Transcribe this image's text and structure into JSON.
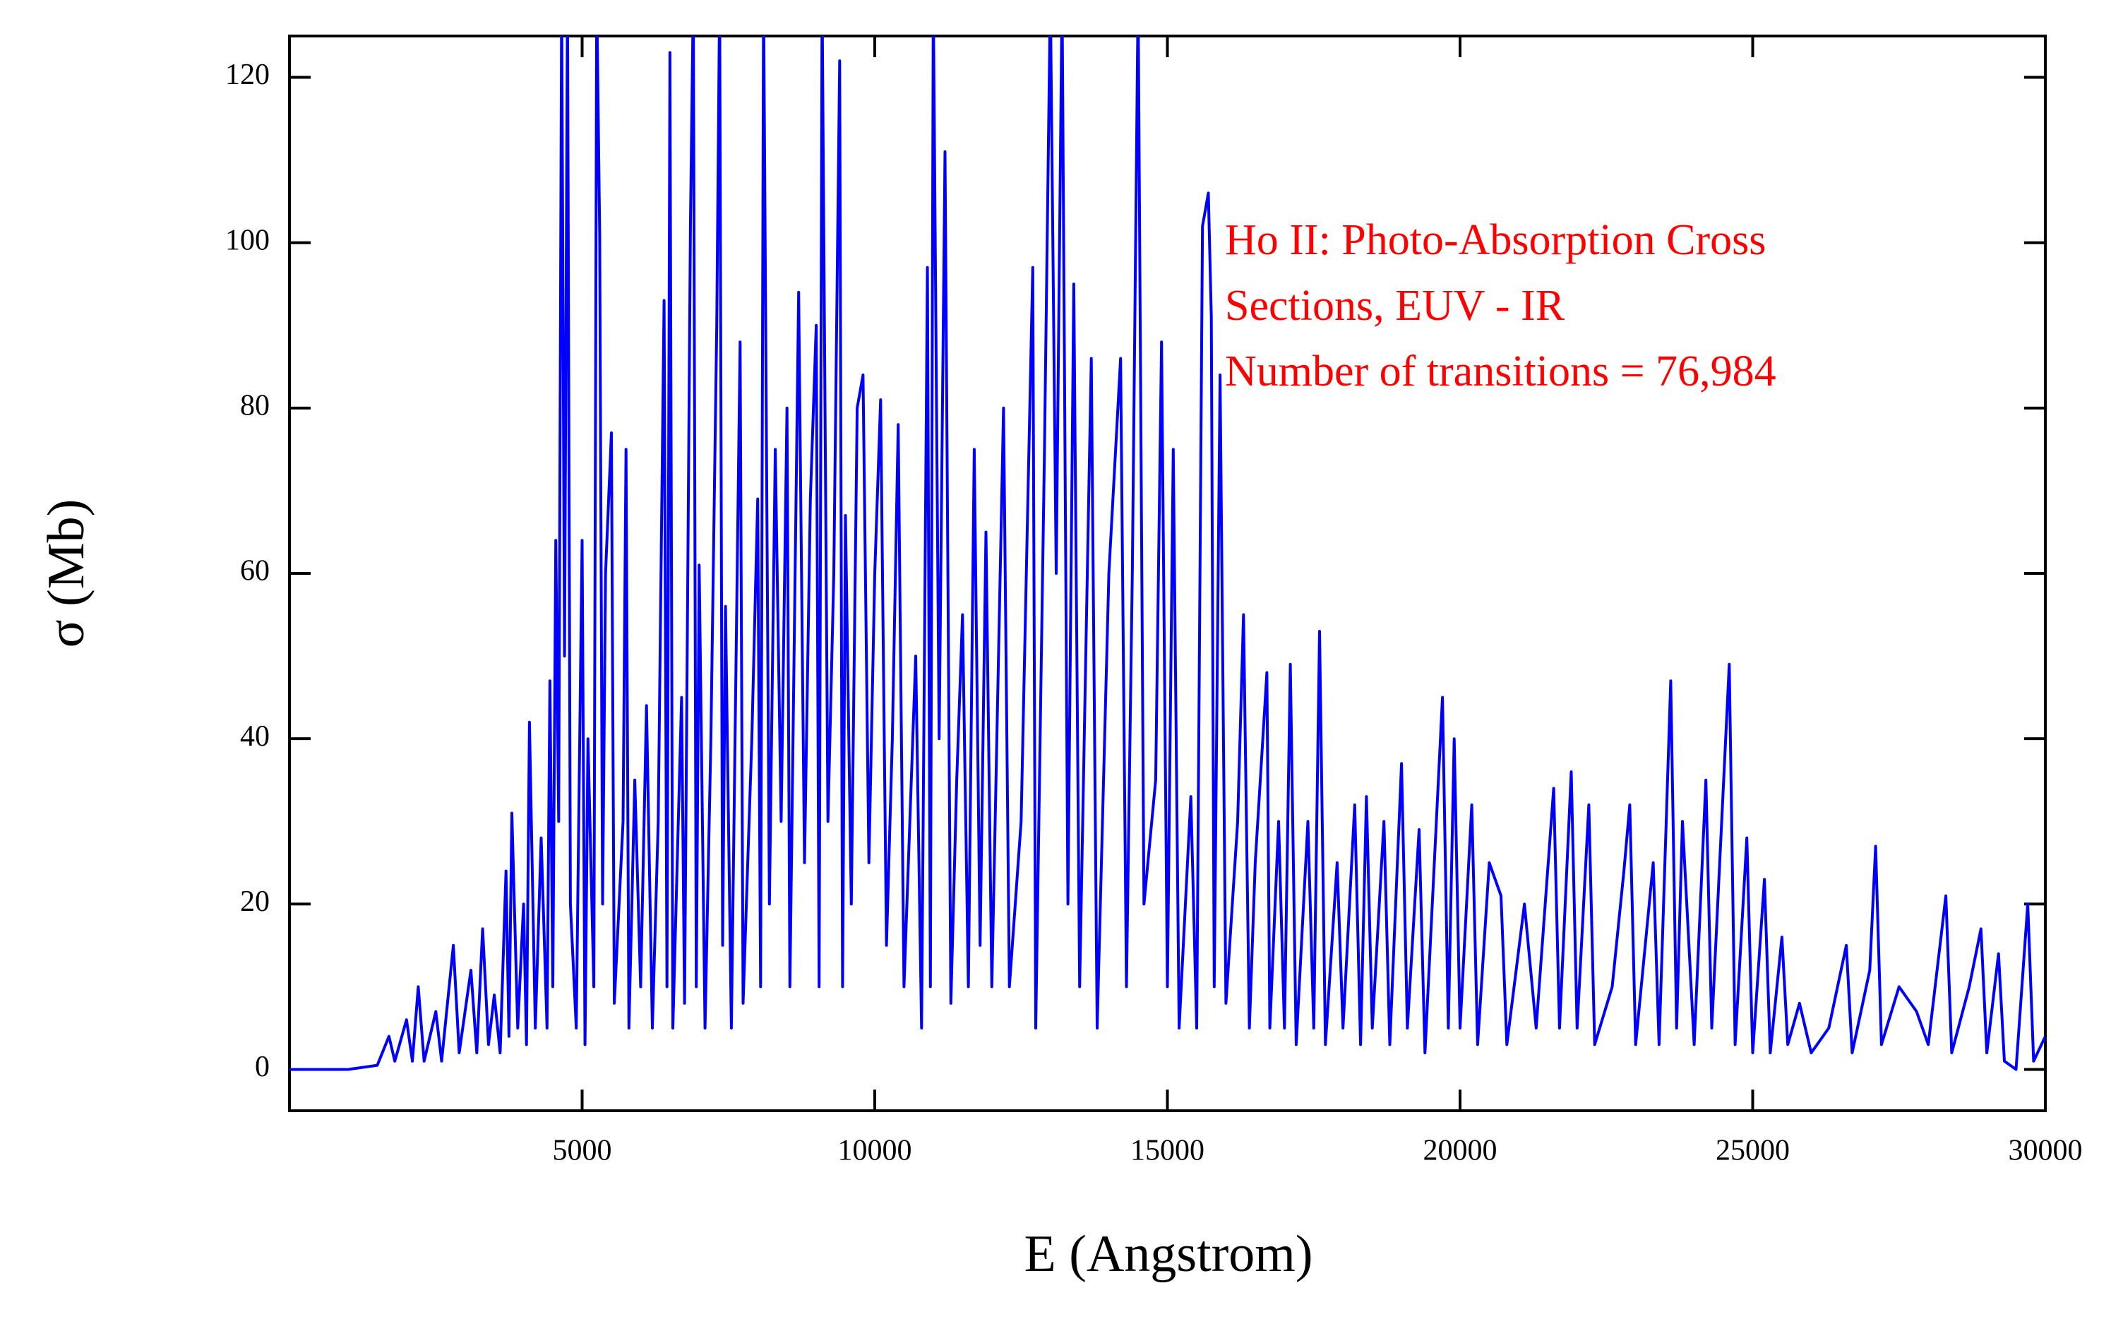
{
  "chart_data": {
    "type": "line",
    "xlabel": "E (Angstrom)",
    "ylabel": "σ (Mb)",
    "annotation": {
      "lines": [
        "Ho II: Photo-Absorption Cross",
        "Sections, EUV - IR",
        "Number of transitions = 76,984"
      ],
      "color": "#ff0000"
    },
    "xlim": [
      0,
      30000
    ],
    "ylim": [
      -5,
      125
    ],
    "xticks": [
      5000,
      10000,
      15000,
      20000,
      25000,
      30000
    ],
    "yticks": [
      0,
      20,
      40,
      60,
      80,
      100,
      120
    ],
    "grid": false,
    "series": [
      {
        "color": "#0000ff",
        "x": [
          0,
          1000,
          1500,
          1700,
          1800,
          2000,
          2100,
          2200,
          2300,
          2500,
          2600,
          2800,
          2900,
          3100,
          3200,
          3300,
          3400,
          3500,
          3600,
          3700,
          3750,
          3800,
          3900,
          4000,
          4050,
          4100,
          4200,
          4300,
          4400,
          4450,
          4500,
          4550,
          4600,
          4650,
          4700,
          4750,
          4800,
          4900,
          5000,
          5050,
          5100,
          5200,
          5250,
          5300,
          5350,
          5400,
          5500,
          5550,
          5700,
          5750,
          5800,
          5900,
          6000,
          6100,
          6200,
          6300,
          6400,
          6450,
          6500,
          6550,
          6700,
          6750,
          6850,
          6900,
          6950,
          7000,
          7100,
          7200,
          7300,
          7350,
          7400,
          7450,
          7550,
          7700,
          7750,
          7900,
          8000,
          8050,
          8100,
          8200,
          8300,
          8400,
          8500,
          8550,
          8700,
          8800,
          8900,
          9000,
          9050,
          9100,
          9200,
          9300,
          9400,
          9450,
          9500,
          9600,
          9700,
          9800,
          9900,
          10000,
          10100,
          10200,
          10300,
          10400,
          10500,
          10700,
          10800,
          10900,
          10950,
          11000,
          11100,
          11200,
          11300,
          11400,
          11500,
          11600,
          11700,
          11800,
          11900,
          12000,
          12200,
          12300,
          12500,
          12700,
          12750,
          12900,
          13000,
          13100,
          13200,
          13300,
          13400,
          13500,
          13700,
          13800,
          14000,
          14200,
          14300,
          14400,
          14500,
          14600,
          14800,
          14900,
          15000,
          15100,
          15200,
          15400,
          15500,
          15600,
          15700,
          15750,
          15800,
          15900,
          16000,
          16200,
          16300,
          16400,
          16500,
          16700,
          16750,
          16900,
          17000,
          17100,
          17200,
          17400,
          17500,
          17600,
          17700,
          17900,
          18000,
          18200,
          18300,
          18400,
          18500,
          18700,
          18800,
          19000,
          19100,
          19300,
          19400,
          19700,
          19800,
          19900,
          20000,
          20200,
          20300,
          20500,
          20700,
          20800,
          21100,
          21300,
          21600,
          21700,
          21900,
          22000,
          22200,
          22300,
          22600,
          22800,
          22900,
          23000,
          23300,
          23400,
          23600,
          23700,
          23800,
          24000,
          24200,
          24300,
          24600,
          24700,
          24900,
          25000,
          25200,
          25300,
          25500,
          25600,
          25800,
          26000,
          26300,
          26600,
          26700,
          27000,
          27100,
          27200,
          27500,
          27800,
          28000,
          28300,
          28400,
          28700,
          28900,
          29000,
          29200,
          29300,
          29500,
          29700,
          29800,
          30000
        ],
        "values": [
          0,
          0,
          0.5,
          4,
          1,
          6,
          1,
          10,
          1,
          7,
          1,
          15,
          2,
          12,
          2,
          17,
          3,
          9,
          2,
          24,
          4,
          31,
          5,
          20,
          3,
          42,
          5,
          28,
          5,
          47,
          10,
          64,
          30,
          130,
          50,
          130,
          20,
          5,
          64,
          3,
          40,
          10,
          130,
          101,
          20,
          60,
          77,
          8,
          30,
          75,
          5,
          35,
          10,
          44,
          5,
          30,
          93,
          10,
          123,
          5,
          45,
          8,
          102,
          130,
          10,
          61,
          5,
          40,
          90,
          130,
          15,
          56,
          5,
          88,
          8,
          40,
          69,
          10,
          130,
          20,
          75,
          30,
          80,
          10,
          94,
          25,
          69,
          90,
          10,
          130,
          30,
          60,
          122,
          10,
          67,
          20,
          80,
          84,
          25,
          60,
          81,
          15,
          40,
          78,
          10,
          50,
          5,
          97,
          10,
          130,
          40,
          111,
          8,
          35,
          55,
          10,
          75,
          15,
          65,
          10,
          80,
          10,
          30,
          97,
          5,
          75,
          130,
          60,
          130,
          20,
          95,
          10,
          86,
          5,
          60,
          86,
          10,
          60,
          130,
          20,
          35,
          88,
          10,
          75,
          5,
          33,
          5,
          102,
          106,
          91,
          10,
          84,
          8,
          30,
          55,
          5,
          25,
          48,
          5,
          30,
          5,
          49,
          3,
          30,
          5,
          53,
          3,
          25,
          5,
          32,
          3,
          33,
          5,
          30,
          3,
          37,
          5,
          29,
          2,
          45,
          5,
          40,
          5,
          32,
          3,
          25,
          21,
          3,
          20,
          5,
          34,
          5,
          36,
          5,
          32,
          3,
          10,
          24,
          32,
          3,
          25,
          3,
          47,
          5,
          30,
          3,
          35,
          5,
          49,
          3,
          28,
          2,
          23,
          2,
          16,
          3,
          8,
          2,
          5,
          15,
          2,
          12,
          27,
          3,
          10,
          7,
          3,
          21,
          2,
          10,
          17,
          2,
          14,
          1,
          0,
          20,
          1,
          4
        ]
      }
    ]
  }
}
